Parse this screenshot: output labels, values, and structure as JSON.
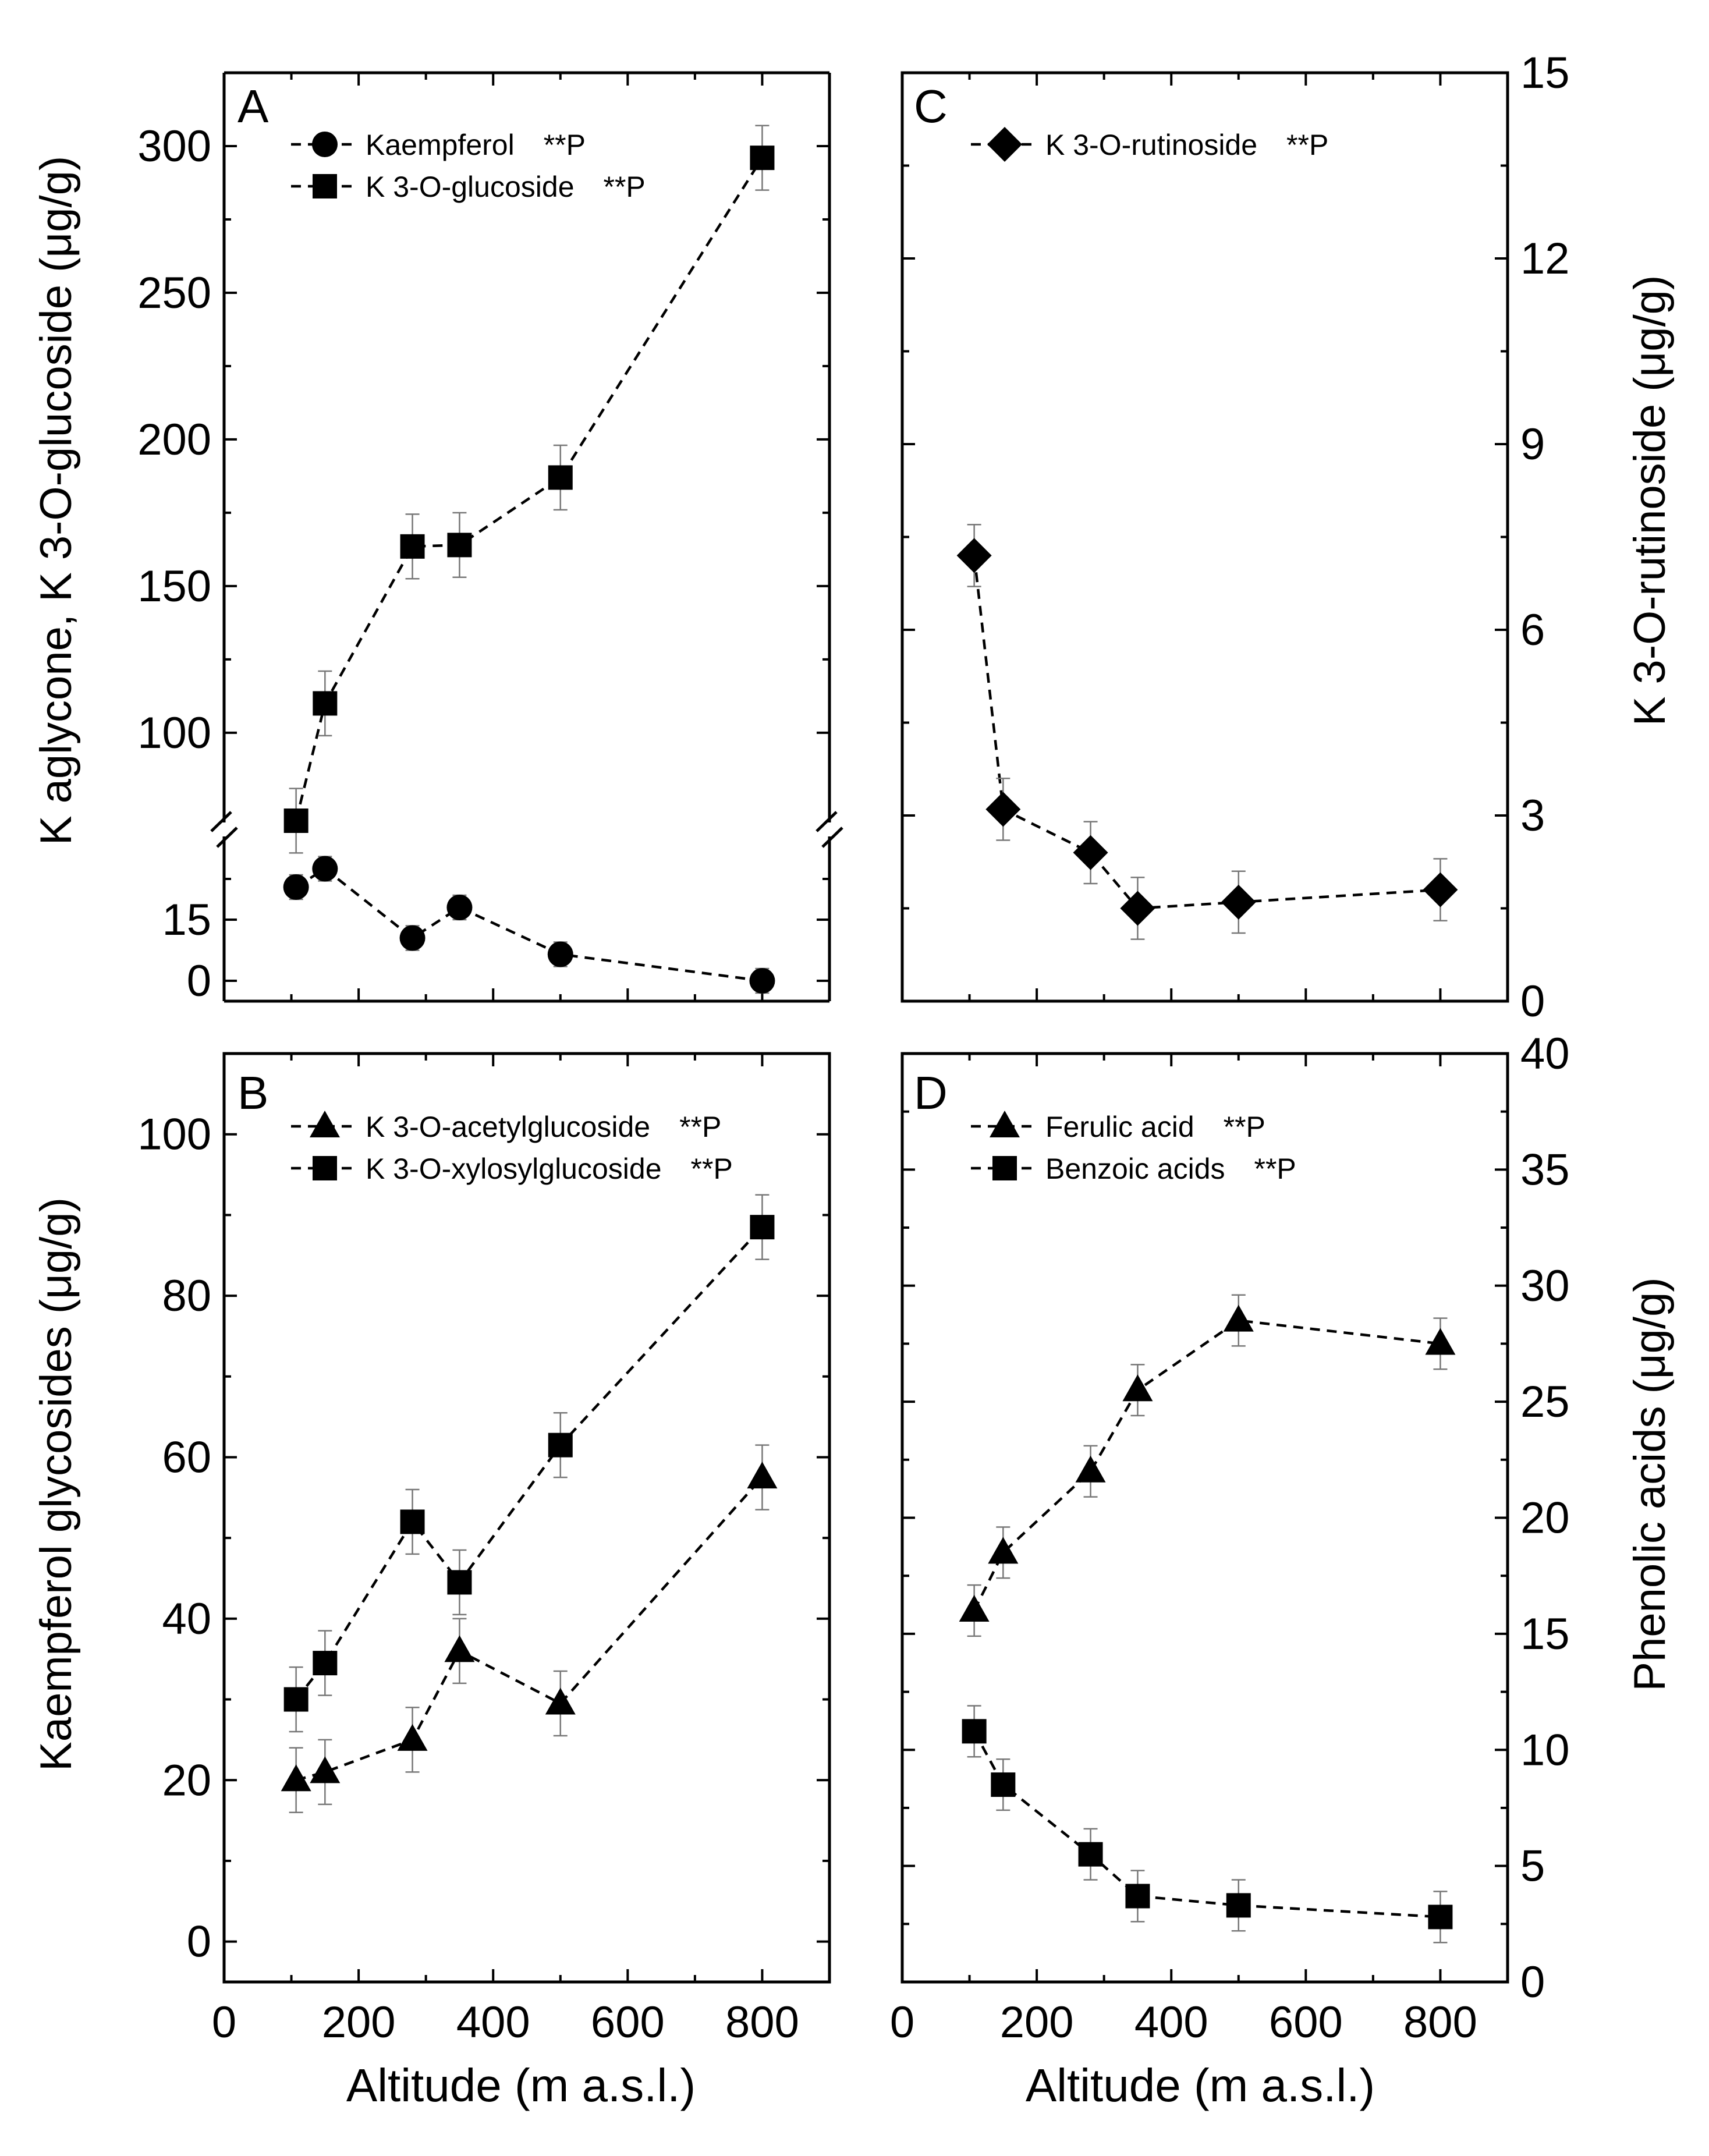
{
  "figure": {
    "shared_xlabel": "Altitude (m a.s.l.)"
  },
  "chart_data": [
    {
      "panel": "A",
      "type": "line",
      "ylabel": "K aglycone, K 3-O-glucoside (μg/g)",
      "xlabel": "Altitude (m a.s.l.)",
      "xlim": [
        0,
        900
      ],
      "x_ticks": [
        0,
        200,
        400,
        600,
        800
      ],
      "y_axis": "broken",
      "ylim_lower": [
        -5,
        35
      ],
      "ylim_upper": [
        70,
        325
      ],
      "y_ticks_lower": [
        0,
        15
      ],
      "y_ticks_upper": [
        100,
        150,
        200,
        250,
        300
      ],
      "y_break_between": [
        35,
        70
      ],
      "series": [
        {
          "name": "Kaempferol",
          "significance": "**P",
          "marker": "circle",
          "x": [
            107,
            150,
            280,
            350,
            500,
            800
          ],
          "y": [
            23,
            27.5,
            10.5,
            18,
            6.5,
            0
          ],
          "err": [
            3,
            3,
            3,
            3,
            3,
            3
          ]
        },
        {
          "name": "K 3-O-glucoside",
          "significance": "**P",
          "marker": "square",
          "x": [
            107,
            150,
            280,
            350,
            500,
            800
          ],
          "y": [
            70,
            110,
            163.5,
            164,
            187,
            296
          ],
          "err": [
            11,
            11,
            11,
            11,
            11,
            11
          ]
        }
      ]
    },
    {
      "panel": "B",
      "type": "line",
      "ylabel": "Kaempferol glycosides (μg/g)",
      "xlabel": "Altitude (m a.s.l.)",
      "xlim": [
        0,
        900
      ],
      "ylim": [
        -5,
        110
      ],
      "x_ticks": [
        0,
        200,
        400,
        600,
        800
      ],
      "y_ticks": [
        0,
        20,
        40,
        60,
        80,
        100
      ],
      "series": [
        {
          "name": "K 3-O-acetylglucoside",
          "significance": "**P",
          "marker": "triangle",
          "x": [
            107,
            150,
            280,
            350,
            500,
            800
          ],
          "y": [
            20,
            21,
            25,
            36,
            29.5,
            57.5
          ],
          "err": [
            4,
            4,
            4,
            4,
            4,
            4
          ]
        },
        {
          "name": "K 3-O-xylosylglucoside",
          "significance": "**P",
          "marker": "square",
          "x": [
            107,
            150,
            280,
            350,
            500,
            800
          ],
          "y": [
            30,
            34.5,
            52,
            44.5,
            61.5,
            88.5
          ],
          "err": [
            4,
            4,
            4,
            4,
            4,
            4
          ]
        }
      ]
    },
    {
      "panel": "C",
      "type": "line",
      "ylabel": "K 3-O-rutinoside (μg/g)",
      "ylabel_side": "right",
      "xlabel": "Altitude (m a.s.l.)",
      "xlim": [
        0,
        900
      ],
      "ylim": [
        0,
        15
      ],
      "x_ticks": [
        0,
        200,
        400,
        600,
        800
      ],
      "y_ticks": [
        0,
        3,
        6,
        9,
        12,
        15
      ],
      "series": [
        {
          "name": "K 3-O-rutinoside",
          "significance": "**P",
          "marker": "diamond",
          "x": [
            107,
            150,
            280,
            350,
            500,
            800
          ],
          "y": [
            7.2,
            3.1,
            2.4,
            1.5,
            1.6,
            1.8
          ],
          "err": [
            0.5,
            0.5,
            0.5,
            0.5,
            0.5,
            0.5
          ]
        }
      ]
    },
    {
      "panel": "D",
      "type": "line",
      "ylabel": "Phenolic acids (μg/g)",
      "ylabel_side": "right",
      "xlabel": "Altitude (m a.s.l.)",
      "xlim": [
        0,
        900
      ],
      "ylim": [
        0,
        40
      ],
      "x_ticks": [
        0,
        200,
        400,
        600,
        800
      ],
      "y_ticks": [
        0,
        5,
        10,
        15,
        20,
        25,
        30,
        35,
        40
      ],
      "series": [
        {
          "name": "Ferulic acid",
          "significance": "**P",
          "marker": "triangle",
          "x": [
            107,
            150,
            280,
            350,
            500,
            800
          ],
          "y": [
            16,
            18.5,
            22,
            25.5,
            28.5,
            27.5
          ],
          "err": [
            1.1,
            1.1,
            1.1,
            1.1,
            1.1,
            1.1
          ]
        },
        {
          "name": "Benzoic acids",
          "significance": "**P",
          "marker": "square",
          "x": [
            107,
            150,
            280,
            350,
            500,
            800
          ],
          "y": [
            10.8,
            8.5,
            5.5,
            3.7,
            3.3,
            2.8
          ],
          "err": [
            1.1,
            1.1,
            1.1,
            1.1,
            1.1,
            1.1
          ]
        }
      ]
    }
  ]
}
